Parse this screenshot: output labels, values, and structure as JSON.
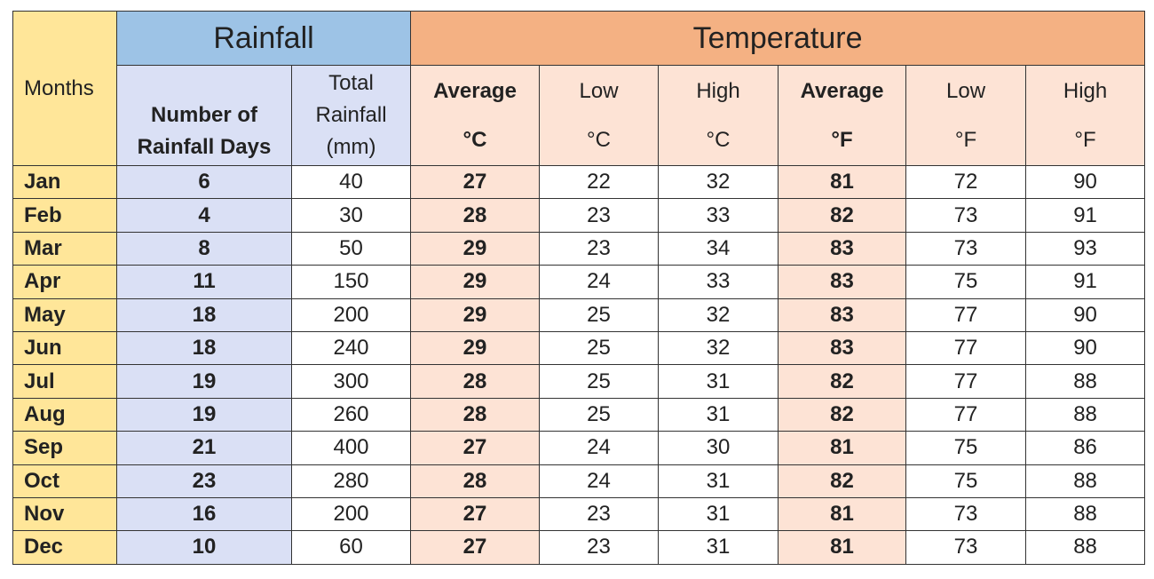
{
  "header": {
    "months": "Months",
    "groups": [
      "Rainfall",
      "Temperature"
    ],
    "columns": [
      [
        "Number of",
        "Rainfall Days"
      ],
      [
        "Total",
        "Rainfall",
        "(mm)"
      ],
      [
        "Average",
        "°C"
      ],
      [
        "Low",
        "°C"
      ],
      [
        "High",
        "°C"
      ],
      [
        "Average",
        "°F"
      ],
      [
        "Low",
        "°F"
      ],
      [
        "High",
        "°F"
      ]
    ]
  },
  "table": {
    "rows": [
      [
        "Jan",
        6,
        40,
        27,
        22,
        32,
        81,
        72,
        90
      ],
      [
        "Feb",
        4,
        30,
        28,
        23,
        33,
        82,
        73,
        91
      ],
      [
        "Mar",
        8,
        50,
        29,
        23,
        34,
        83,
        73,
        93
      ],
      [
        "Apr",
        11,
        150,
        29,
        24,
        33,
        83,
        75,
        91
      ],
      [
        "May",
        18,
        200,
        29,
        25,
        32,
        83,
        77,
        90
      ],
      [
        "Jun",
        18,
        240,
        29,
        25,
        32,
        83,
        77,
        90
      ],
      [
        "Jul",
        19,
        300,
        28,
        25,
        31,
        82,
        77,
        88
      ],
      [
        "Aug",
        19,
        260,
        28,
        25,
        31,
        82,
        77,
        88
      ],
      [
        "Sep",
        21,
        400,
        27,
        24,
        30,
        81,
        75,
        86
      ],
      [
        "Oct",
        23,
        280,
        28,
        24,
        31,
        82,
        75,
        88
      ],
      [
        "Nov",
        16,
        200,
        27,
        23,
        31,
        81,
        73,
        88
      ],
      [
        "Dec",
        10,
        60,
        27,
        23,
        31,
        81,
        73,
        88
      ]
    ]
  }
}
